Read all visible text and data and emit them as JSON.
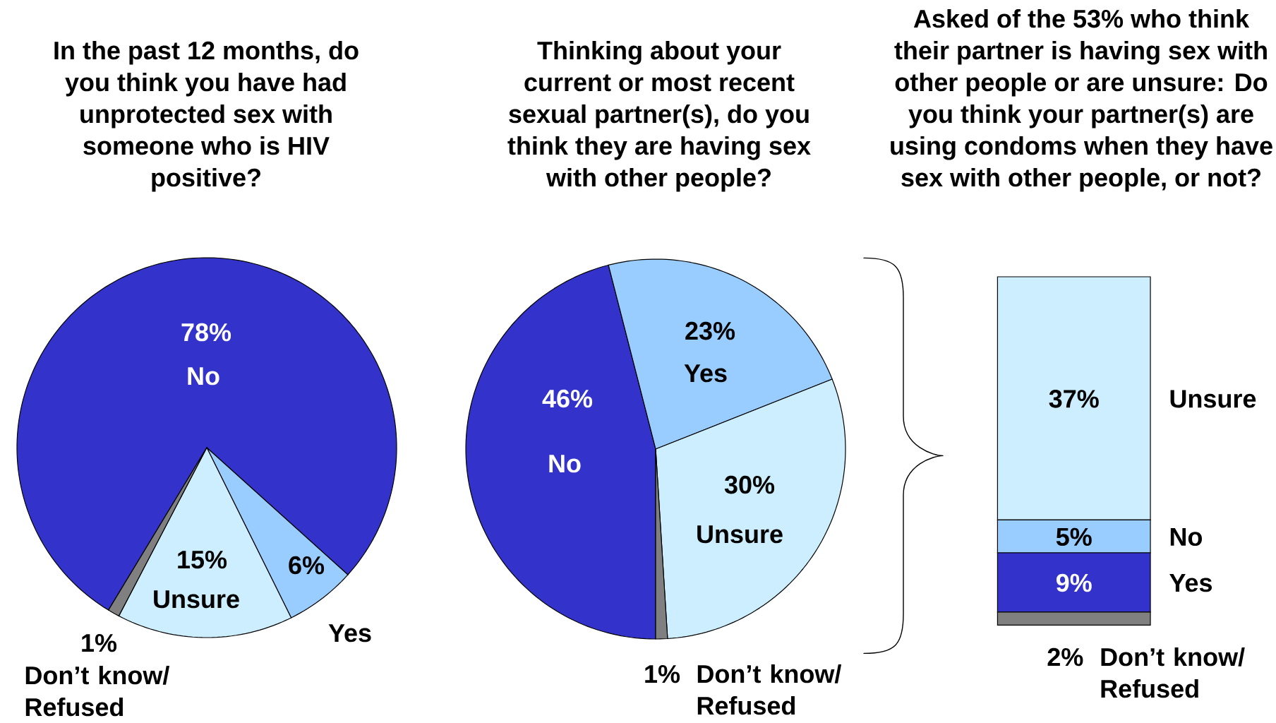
{
  "chart_data": [
    {
      "type": "pie",
      "title": "In the past 12 months, do you think you have had unprotected sex with someone who is HIV positive?",
      "categories": [
        "No",
        "Yes",
        "Unsure",
        "Don’t know/ Refused"
      ],
      "values": [
        78,
        6,
        15,
        1
      ],
      "value_labels": [
        "78%",
        "6%",
        "15%",
        "1%"
      ],
      "colors": [
        "#3333cc",
        "#99ccff",
        "#cceeff",
        "#808080"
      ]
    },
    {
      "type": "pie",
      "title": "Thinking about your current or most recent sexual partner(s), do you think they are having sex with other people?",
      "categories": [
        "No",
        "Yes",
        "Unsure",
        "Don’t know/ Refused"
      ],
      "values": [
        46,
        23,
        30,
        1
      ],
      "value_labels": [
        "46%",
        "23%",
        "30%",
        "1%"
      ],
      "colors": [
        "#3333cc",
        "#99ccff",
        "#cceeff",
        "#808080"
      ]
    },
    {
      "type": "bar",
      "stacked": true,
      "title": "Asked of the 53% who think their partner is having sex with other people or are unsure: Do you think your partner(s) are using condoms when they have sex with other people, or not?",
      "categories": [
        null
      ],
      "series": [
        {
          "name": "Don’t know/ Refused",
          "color": "#808080",
          "values": [
            2
          ],
          "value_labels": [
            "2%"
          ]
        },
        {
          "name": "Yes",
          "color": "#3333cc",
          "values": [
            9
          ],
          "value_labels": [
            "9%"
          ]
        },
        {
          "name": "No",
          "color": "#99ccff",
          "values": [
            5
          ],
          "value_labels": [
            "5%"
          ]
        },
        {
          "name": "Unsure",
          "color": "#cceeff",
          "values": [
            37
          ],
          "value_labels": [
            "37%"
          ]
        }
      ]
    }
  ]
}
